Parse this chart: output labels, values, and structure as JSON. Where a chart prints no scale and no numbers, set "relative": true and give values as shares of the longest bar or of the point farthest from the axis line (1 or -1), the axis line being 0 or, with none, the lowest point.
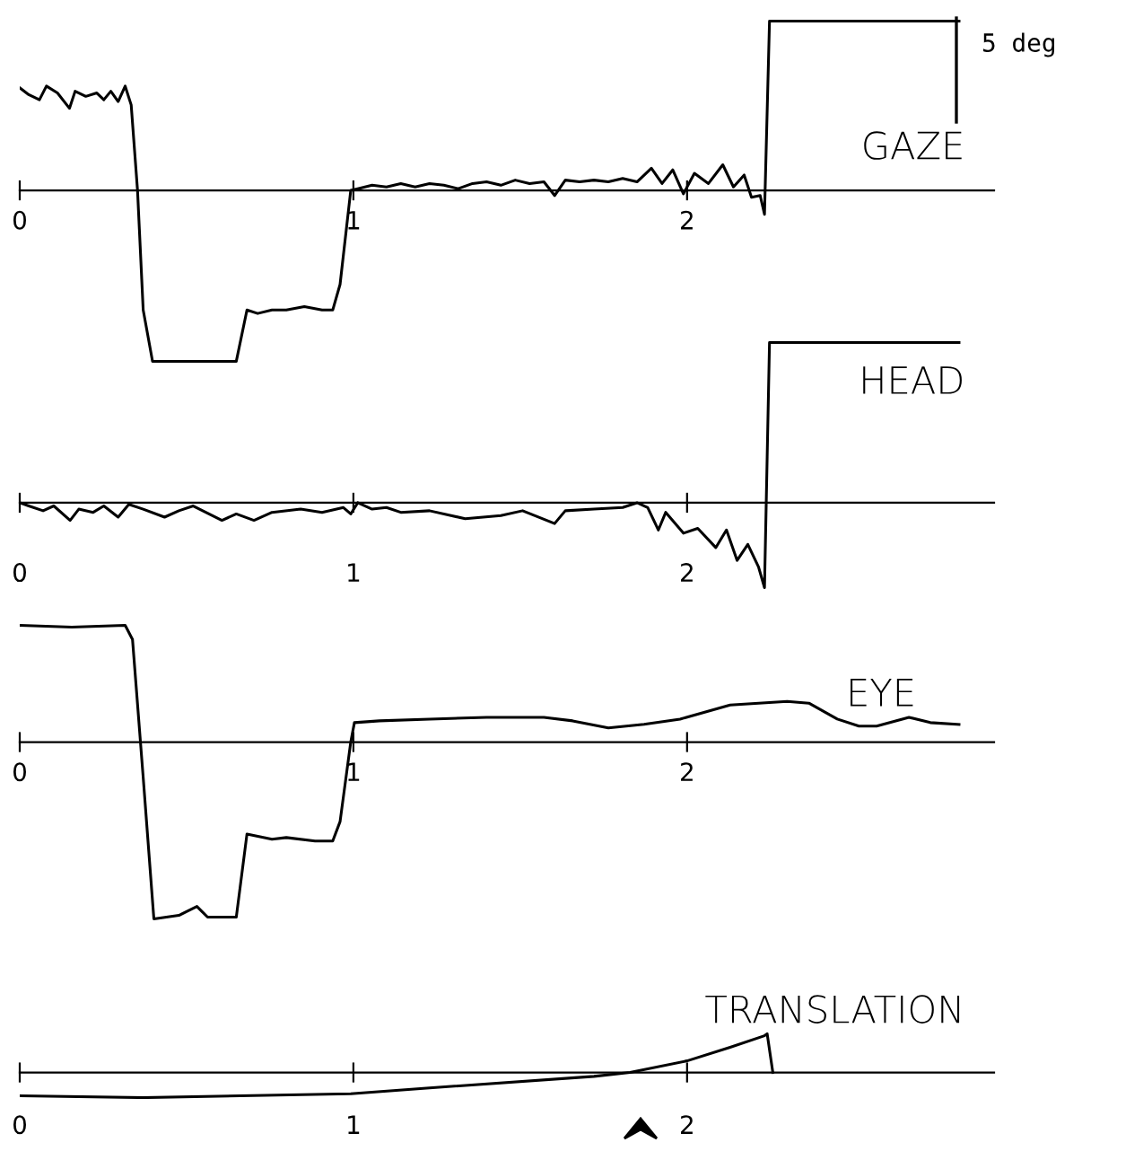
{
  "chart_data": [
    {
      "type": "line",
      "title": "GAZE",
      "relative": true,
      "annotations": [
        "5 deg"
      ],
      "xlim": [
        0,
        2.92
      ],
      "xticks": [
        0,
        1,
        2
      ],
      "grid": false,
      "legend": false,
      "marker": "none",
      "line_style": "solid",
      "series": [
        {
          "color": "#000000",
          "x": [
            0.0,
            0.027,
            0.059,
            0.08,
            0.113,
            0.149,
            0.166,
            0.198,
            0.231,
            0.252,
            0.273,
            0.295,
            0.316,
            0.334,
            0.353,
            0.37,
            0.398,
            0.649,
            0.681,
            0.713,
            0.756,
            0.799,
            0.853,
            0.906,
            0.938,
            0.96,
            0.992,
            1.013,
            1.056,
            1.099,
            1.142,
            1.185,
            1.228,
            1.271,
            1.314,
            1.357,
            1.399,
            1.442,
            1.485,
            1.528,
            1.571,
            1.603,
            1.635,
            1.678,
            1.721,
            1.764,
            1.807,
            1.85,
            1.893,
            1.925,
            1.957,
            1.989,
            2.022,
            2.064,
            2.107,
            2.139,
            2.171,
            2.193,
            2.219,
            2.232,
            2.247,
            2.815
          ],
          "values": [
            0.6,
            0.56,
            0.53,
            0.61,
            0.57,
            0.48,
            0.58,
            0.55,
            0.57,
            0.53,
            0.58,
            0.52,
            0.61,
            0.5,
            0.0,
            -0.7,
            -1.0,
            -1.0,
            -0.7,
            -0.72,
            -0.7,
            -0.7,
            -0.68,
            -0.7,
            -0.7,
            -0.55,
            0.0,
            0.01,
            0.03,
            0.02,
            0.04,
            0.02,
            0.04,
            0.03,
            0.01,
            0.04,
            0.05,
            0.03,
            0.06,
            0.04,
            0.05,
            -0.03,
            0.06,
            0.05,
            0.06,
            0.05,
            0.07,
            0.05,
            0.13,
            0.04,
            0.12,
            -0.02,
            0.1,
            0.04,
            0.15,
            0.02,
            0.09,
            -0.04,
            -0.03,
            -0.14,
            0.99,
            0.99
          ]
        }
      ]
    },
    {
      "type": "line",
      "title": "HEAD",
      "relative": true,
      "xlim": [
        0,
        2.92
      ],
      "xticks": [
        0,
        1,
        2
      ],
      "grid": false,
      "legend": false,
      "marker": "none",
      "line_style": "solid",
      "series": [
        {
          "color": "#000000",
          "x": [
            0.0,
            0.027,
            0.07,
            0.102,
            0.151,
            0.177,
            0.22,
            0.252,
            0.295,
            0.327,
            0.37,
            0.434,
            0.477,
            0.52,
            0.606,
            0.649,
            0.702,
            0.756,
            0.842,
            0.906,
            0.97,
            0.992,
            1.013,
            1.056,
            1.099,
            1.142,
            1.228,
            1.335,
            1.442,
            1.507,
            1.603,
            1.635,
            1.721,
            1.807,
            1.85,
            1.882,
            1.914,
            1.936,
            1.989,
            2.032,
            2.086,
            2.118,
            2.15,
            2.182,
            2.214,
            2.232,
            2.247,
            2.815
          ],
          "values": [
            0.0,
            -0.02,
            -0.05,
            -0.02,
            -0.11,
            -0.04,
            -0.06,
            -0.02,
            -0.09,
            -0.01,
            -0.04,
            -0.09,
            -0.05,
            -0.02,
            -0.11,
            -0.07,
            -0.11,
            -0.06,
            -0.04,
            -0.06,
            -0.03,
            -0.07,
            0.0,
            -0.04,
            -0.03,
            -0.06,
            -0.05,
            -0.1,
            -0.08,
            -0.05,
            -0.13,
            -0.05,
            -0.04,
            -0.03,
            0.0,
            -0.03,
            -0.17,
            -0.06,
            -0.19,
            -0.16,
            -0.28,
            -0.17,
            -0.36,
            -0.26,
            -0.4,
            -0.53,
            1.0,
            1.0
          ]
        }
      ]
    },
    {
      "type": "line",
      "title": "EYE",
      "relative": true,
      "xlim": [
        0,
        2.92
      ],
      "xticks": [
        0,
        1,
        2
      ],
      "grid": false,
      "legend": false,
      "marker": "none",
      "line_style": "solid",
      "series": [
        {
          "color": "#000000",
          "x": [
            0.0,
            0.156,
            0.316,
            0.338,
            0.37,
            0.402,
            0.477,
            0.531,
            0.563,
            0.649,
            0.681,
            0.756,
            0.799,
            0.885,
            0.938,
            0.96,
            0.992,
            1.003,
            1.078,
            1.228,
            1.399,
            1.571,
            1.657,
            1.764,
            1.871,
            1.979,
            2.129,
            2.3,
            2.365,
            2.45,
            2.515,
            2.568,
            2.665,
            2.729,
            2.815
          ],
          "values": [
            0.66,
            0.65,
            0.66,
            0.58,
            -0.2,
            -1.0,
            -0.98,
            -0.93,
            -0.99,
            -0.99,
            -0.52,
            -0.55,
            -0.54,
            -0.56,
            -0.56,
            -0.45,
            0.0,
            0.11,
            0.12,
            0.13,
            0.14,
            0.14,
            0.12,
            0.08,
            0.1,
            0.13,
            0.21,
            0.23,
            0.22,
            0.13,
            0.09,
            0.09,
            0.14,
            0.11,
            0.1
          ]
        }
      ]
    },
    {
      "type": "line",
      "title": "TRANSLATION",
      "relative": true,
      "xlim": [
        0,
        2.92
      ],
      "xticks": [
        0,
        1,
        2
      ],
      "grid": false,
      "legend": false,
      "marker": "none",
      "line_style": "solid",
      "series": [
        {
          "color": "#000000",
          "x": [
            0.0,
            0.37,
            0.992,
            1.228,
            1.721,
            1.829,
            2.0,
            2.129,
            2.232,
            2.24,
            2.257
          ],
          "values": [
            -0.6,
            -0.65,
            -0.55,
            -0.4,
            -0.1,
            0.0,
            0.3,
            0.65,
            0.95,
            1.0,
            0.0
          ]
        }
      ]
    }
  ]
}
